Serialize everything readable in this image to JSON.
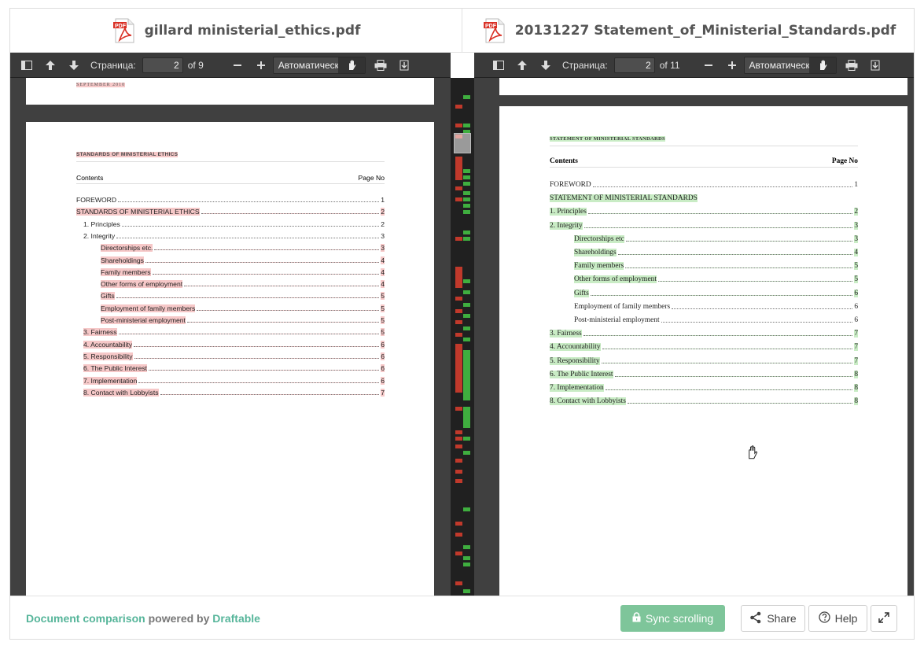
{
  "left": {
    "file_title": "gillard ministerial_ethics.pdf",
    "toolbar": {
      "page_label": "Страница:",
      "page_value": "2",
      "page_total": "of 9",
      "zoom_value": "Автоматически"
    },
    "prev_page_footer": "SEPTEMBER 2010",
    "doc_heading": "STANDARDS OF MINISTERIAL ETHICS",
    "contents_label": "Contents",
    "page_no_label": "Page No",
    "toc": [
      {
        "text": "FOREWORD",
        "page": "1",
        "indent": 0
      },
      {
        "text": "STANDARDS OF MINISTERIAL ETHICS",
        "page": "2",
        "indent": 0
      },
      {
        "text": "1.  Principles",
        "page": "2",
        "indent": 1
      },
      {
        "text": "2.  Integrity",
        "page": "3",
        "indent": 1
      },
      {
        "text": "Directorships etc.",
        "page": "3",
        "indent": 2
      },
      {
        "text": "Shareholdings",
        "page": "4",
        "indent": 2
      },
      {
        "text": "Family members",
        "page": "4",
        "indent": 2
      },
      {
        "text": "Other forms of employment",
        "page": "4",
        "indent": 2
      },
      {
        "text": "Gifts",
        "page": "5",
        "indent": 2
      },
      {
        "text": "Employment of family members",
        "page": "5",
        "indent": 2
      },
      {
        "text": "Post-ministerial employment",
        "page": "5",
        "indent": 2
      },
      {
        "text": "3.  Fairness",
        "page": "5",
        "indent": 1
      },
      {
        "text": "4.  Accountability",
        "page": "6",
        "indent": 1
      },
      {
        "text": "5.  Responsibility",
        "page": "6",
        "indent": 1
      },
      {
        "text": "6.  The Public Interest",
        "page": "6",
        "indent": 1
      },
      {
        "text": "7.  Implementation",
        "page": "6",
        "indent": 1
      },
      {
        "text": "8.  Contact with Lobbyists",
        "page": "7",
        "indent": 1
      }
    ]
  },
  "right": {
    "file_title": "20131227 Statement_of_Ministerial_Standards.pdf",
    "toolbar": {
      "page_label": "Страница:",
      "page_value": "2",
      "page_total": "of 11",
      "zoom_value": "Автоматически"
    },
    "doc_heading": "STATEMENT OF MINISTERIAL STANDARDS",
    "contents_label": "Contents",
    "page_no_label": "Page No",
    "toc": [
      {
        "text": "FOREWORD",
        "page": "1",
        "indent": 0
      },
      {
        "text": "STATEMENT OF MINISTERIAL STANDARDS",
        "page": "",
        "indent": 0
      },
      {
        "text": "1.  Principles",
        "page": "2",
        "indent": 0
      },
      {
        "text": "2.  Integrity",
        "page": "3",
        "indent": 0
      },
      {
        "text": "Directorships etc",
        "page": "3",
        "indent": 2
      },
      {
        "text": "Shareholdings",
        "page": "4",
        "indent": 2
      },
      {
        "text": "Family members",
        "page": "5",
        "indent": 2
      },
      {
        "text": "Other forms of employment",
        "page": "5",
        "indent": 2
      },
      {
        "text": "Gifts",
        "page": "6",
        "indent": 2
      },
      {
        "text": "Employment of family members",
        "page": "6",
        "indent": 2
      },
      {
        "text": "Post-ministerial employment",
        "page": "6",
        "indent": 2
      },
      {
        "text": "3.  Fairness",
        "page": "7",
        "indent": 0
      },
      {
        "text": "4.  Accountability",
        "page": "7",
        "indent": 0
      },
      {
        "text": "5.  Responsibility",
        "page": "7",
        "indent": 0
      },
      {
        "text": "6.  The Public Interest",
        "page": "8",
        "indent": 0
      },
      {
        "text": "7.  Implementation",
        "page": "8",
        "indent": 0
      },
      {
        "text": "8.  Contact with Lobbyists",
        "page": "8",
        "indent": 0
      }
    ]
  },
  "footer": {
    "powered_prefix": "Document comparison",
    "powered_mid": "powered by",
    "powered_brand": "Draftable",
    "sync_label": "Sync scrolling",
    "share_label": "Share",
    "help_label": "Help"
  },
  "colors": {
    "deletion": "#f6c8c8",
    "insertion": "#c9ecc5",
    "accent_green": "#7ec59a",
    "brand_teal": "#56b59a"
  }
}
